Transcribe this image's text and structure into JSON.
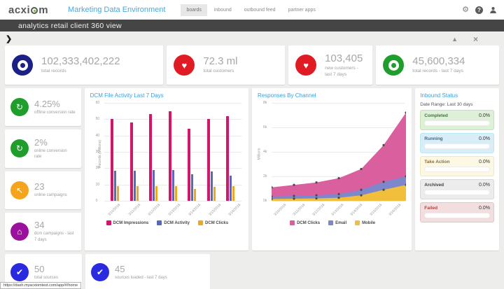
{
  "icons": {
    "gear": "⚙",
    "help": "?",
    "heart": "♥",
    "refresh": "↻",
    "cursor": "↖",
    "home": "⌂",
    "check": "✔",
    "chevron": "❯",
    "expand": "▲",
    "close": "×"
  },
  "header": {
    "logo_part1": "acxi",
    "logo_part2": "m",
    "app_title": "Marketing Data Environment",
    "tabs": [
      {
        "label": "boards",
        "active": true
      },
      {
        "label": "inbound",
        "active": false
      },
      {
        "label": "outbound feed",
        "active": false
      },
      {
        "label": "partner apps",
        "active": false
      }
    ]
  },
  "subheader": {
    "title": "analytics retail client 360 view"
  },
  "kpi_row": [
    {
      "value": "102,333,402,222",
      "label": "total records",
      "icon": "target-icon",
      "color": "#1b2186"
    },
    {
      "value": "72.3 ml",
      "label": "total customers",
      "icon": "heart-icon",
      "color": "#e01b24"
    },
    {
      "value": "103,405",
      "label": "new customers - last 7 days",
      "icon": "heart-icon",
      "color": "#e01b24"
    },
    {
      "value": "45,600,334",
      "label": "total records - last 7 days",
      "icon": "target-icon",
      "color": "#1f9e2c"
    }
  ],
  "side_kpis": [
    {
      "value": "4.25%",
      "label": "offline conversion rate",
      "icon": "refresh-icon",
      "color": "#1f9e2c"
    },
    {
      "value": "2%",
      "label": "online conversion rate",
      "icon": "refresh-icon",
      "color": "#1f9e2c"
    },
    {
      "value": "23",
      "label": "online campaigns",
      "icon": "cursor-icon",
      "color": "#f5a51d"
    },
    {
      "value": "34",
      "label": "dcm campaigns - last 7 days",
      "icon": "home-icon",
      "color": "#9b119e"
    }
  ],
  "bottom_row": [
    {
      "value": "50",
      "label": "total sources",
      "icon": "check-icon",
      "color": "#2a2ae0"
    },
    {
      "value": "45",
      "label": "sources loaded - last 7 days",
      "icon": "check-icon",
      "color": "#2a2ae0"
    }
  ],
  "chart_data": [
    {
      "type": "bar",
      "title": "DCM File Activity Last 7 Days",
      "xlabel": "",
      "ylabel": "Records (Millions)",
      "ylim": [
        0,
        60
      ],
      "yticks": [
        0,
        10,
        20,
        30,
        40,
        50,
        60
      ],
      "grid": true,
      "legend_position": "bottom",
      "categories": [
        "3/10/2016",
        "3/11/2016",
        "3/12/2016",
        "3/13/2016",
        "3/14/2016",
        "3/15/2016",
        "3/16/2016"
      ],
      "series": [
        {
          "name": "DCM Impressions",
          "color": "#d4156b",
          "values": [
            50,
            48,
            53,
            55,
            44,
            50,
            52
          ]
        },
        {
          "name": "DCM Activity",
          "color": "#5a68b8",
          "values": [
            18.5,
            18.5,
            19,
            19,
            16.5,
            18,
            15.5
          ]
        },
        {
          "name": "DCM Clicks",
          "color": "#f0a818",
          "values": [
            9,
            9,
            9,
            9,
            7.5,
            8.5,
            9
          ]
        }
      ]
    },
    {
      "type": "area",
      "title": "Responses By Channel",
      "xlabel": "",
      "ylabel": "Millions",
      "ylim": [
        0,
        8
      ],
      "yticks": [
        "0k",
        "2k",
        "4k",
        "6k",
        "8k"
      ],
      "grid": true,
      "stacked": true,
      "legend_position": "bottom",
      "categories": [
        "3/10/2016",
        "3/11/2016",
        "3/12/2016",
        "3/13/2016",
        "3/14/2016",
        "3/15/2016",
        "3/16/2016"
      ],
      "series": [
        {
          "name": "DCM Clicks",
          "color": "#da5f9f",
          "values": [
            0.75,
            0.9,
            1.05,
            1.3,
            1.7,
            3.0,
            5.2
          ]
        },
        {
          "name": "Email",
          "color": "#7d88cc",
          "values": [
            0.2,
            0.22,
            0.25,
            0.3,
            0.45,
            0.65,
            0.7
          ]
        },
        {
          "name": "Mobile",
          "color": "#f2bf3c",
          "values": [
            0.15,
            0.18,
            0.2,
            0.25,
            0.45,
            0.9,
            1.3
          ]
        }
      ]
    }
  ],
  "inbound_status": {
    "title": "Inbound Status",
    "date_range_label": "Date Range:  Last 30 days",
    "statuses": [
      {
        "label": "Completed",
        "pct": "0.0%",
        "bg": "#dff0d8",
        "border": "#c8e0b5",
        "text": "#3c763d"
      },
      {
        "label": "Running",
        "pct": "0.0%",
        "bg": "#d9edf7",
        "border": "#bce8f1",
        "text": "#31708f"
      },
      {
        "label": "Take Action",
        "pct": "0.0%",
        "bg": "#fcf8e3",
        "border": "#f0e6c0",
        "text": "#8a6d3b"
      },
      {
        "label": "Archived",
        "pct": "0.0%",
        "bg": "#ececec",
        "border": "#d8d8d8",
        "text": "#3f3f3f"
      },
      {
        "label": "Failed",
        "pct": "0.0%",
        "bg": "#f2dede",
        "border": "#e4c4c9",
        "text": "#a94442"
      }
    ]
  },
  "statusbar": {
    "url": "https://dash.myacxiomtest.com/app/#/home"
  }
}
